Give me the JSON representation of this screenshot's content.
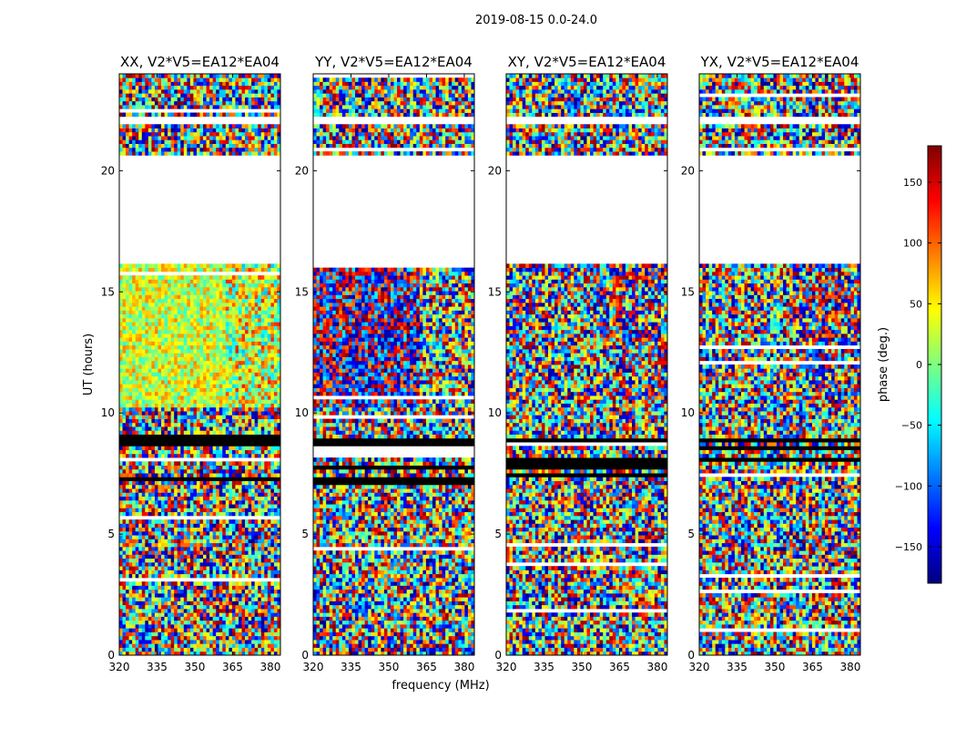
{
  "figure": {
    "title": "2019-08-15 0.0-24.0",
    "xlabel": "frequency (MHz)",
    "ylabel": "UT (hours)"
  },
  "chart_data": {
    "type": "heatmap",
    "title": "2019-08-15 0.0-24.0",
    "xlabel": "frequency (MHz)",
    "ylabel": "UT (hours)",
    "xlim": [
      320,
      384
    ],
    "ylim": [
      0,
      24
    ],
    "xticks": [
      320,
      335,
      350,
      365,
      380
    ],
    "yticks": [
      0,
      5,
      10,
      15,
      20
    ],
    "grid": false,
    "panels": [
      {
        "title": "XX, V2*V5=EA12*EA04",
        "dominant_phase_10_16h": 30,
        "spread": "low"
      },
      {
        "title": "YY, V2*V5=EA12*EA04",
        "dominant_phase_10_16h": -160,
        "spread": "medium"
      },
      {
        "title": "XY, V2*V5=EA12*EA04",
        "dominant_phase_10_16h": 0,
        "spread": "high"
      },
      {
        "title": "YX, V2*V5=EA12*EA04",
        "dominant_phase_10_16h": 0,
        "spread": "high"
      }
    ],
    "flagged_ut_ranges": [
      [
        16.2,
        20.7
      ],
      [
        21.85,
        22.2
      ]
    ],
    "colorbar": {
      "label": "phase (deg.)",
      "range": [
        -180,
        180
      ],
      "ticks": [
        -150,
        -100,
        -50,
        0,
        50,
        100,
        150
      ],
      "colormap": "jet",
      "colors": [
        "#00007f",
        "#0000ff",
        "#007fff",
        "#00ffff",
        "#7fff7f",
        "#ffff00",
        "#ff7f00",
        "#ff0000",
        "#7f0000"
      ]
    }
  }
}
